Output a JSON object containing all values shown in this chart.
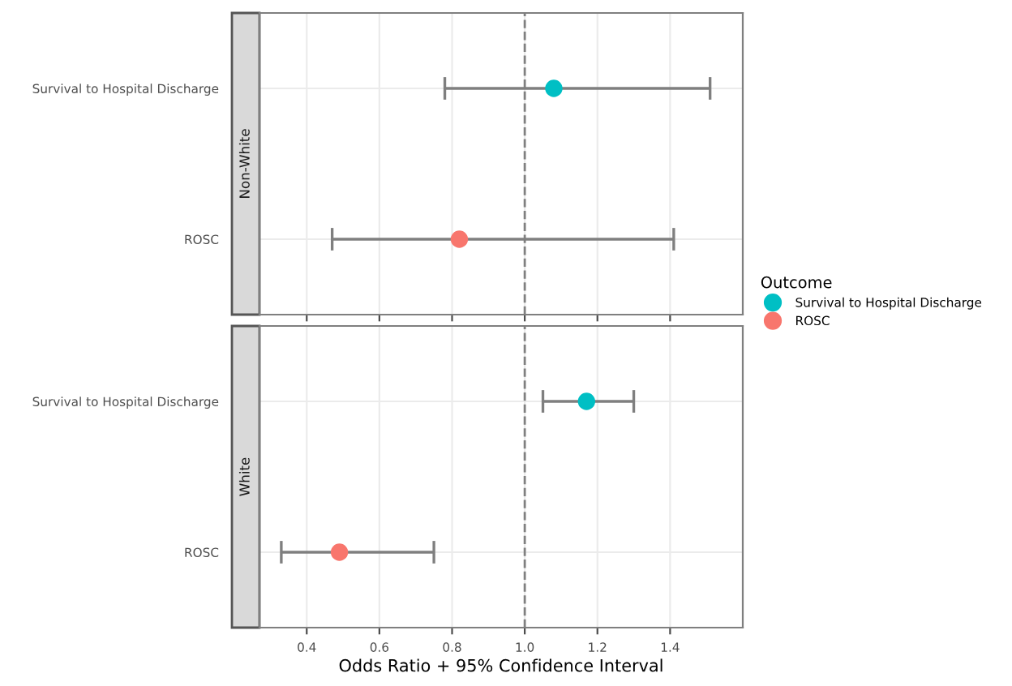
{
  "chart_data": [
    {
      "type": "scatter",
      "title": "Non-White",
      "orientation": "horizontal",
      "categories": [
        "Survival to Hospital Discharge",
        "ROSC"
      ],
      "series": [
        {
          "name": "Survival to Hospital Discharge",
          "color": "#00bfc4",
          "values": [
            1.08,
            null
          ],
          "errors": [
            [
              0.78,
              1.51
            ],
            null
          ]
        },
        {
          "name": "ROSC",
          "color": "#f8766d",
          "values": [
            null,
            0.82
          ],
          "errors": [
            null,
            [
              0.47,
              1.41
            ]
          ]
        }
      ],
      "xlim": [
        0.27,
        1.6
      ],
      "xticks": [
        0.4,
        0.6,
        0.8,
        1.0,
        1.2,
        1.4
      ],
      "tick_labels": "y",
      "grid": true,
      "marker": "circle",
      "ref_lines": [
        {
          "axis": "x",
          "value": 1.0,
          "line_style": "dashed",
          "color": "#808080"
        }
      ],
      "legend": "right",
      "legend_title": "Outcome"
    },
    {
      "type": "scatter",
      "title": "White",
      "orientation": "horizontal",
      "categories": [
        "Survival to Hospital Discharge",
        "ROSC"
      ],
      "series": [
        {
          "name": "Survival to Hospital Discharge",
          "color": "#00bfc4",
          "values": [
            1.17,
            null
          ],
          "errors": [
            [
              1.05,
              1.3
            ],
            null
          ]
        },
        {
          "name": "ROSC",
          "color": "#f8766d",
          "values": [
            null,
            0.49
          ],
          "errors": [
            null,
            [
              0.33,
              0.75
            ]
          ]
        }
      ],
      "xlim": [
        0.27,
        1.6
      ],
      "xticks": [
        {
          "value": 0.4,
          "label": "0.4"
        },
        {
          "value": 0.6,
          "label": "0.6"
        },
        {
          "value": 0.8,
          "label": "0.8"
        },
        {
          "value": 1.0,
          "label": "1.0"
        },
        {
          "value": 1.2,
          "label": "1.2"
        },
        {
          "value": 1.4,
          "label": "1.4"
        }
      ],
      "xlabel": "Odds Ratio + 95% Confidence Interval",
      "grid": true,
      "marker": "circle",
      "ref_lines": [
        {
          "axis": "x",
          "value": 1.0,
          "line_style": "dashed",
          "color": "#808080"
        }
      ]
    }
  ]
}
